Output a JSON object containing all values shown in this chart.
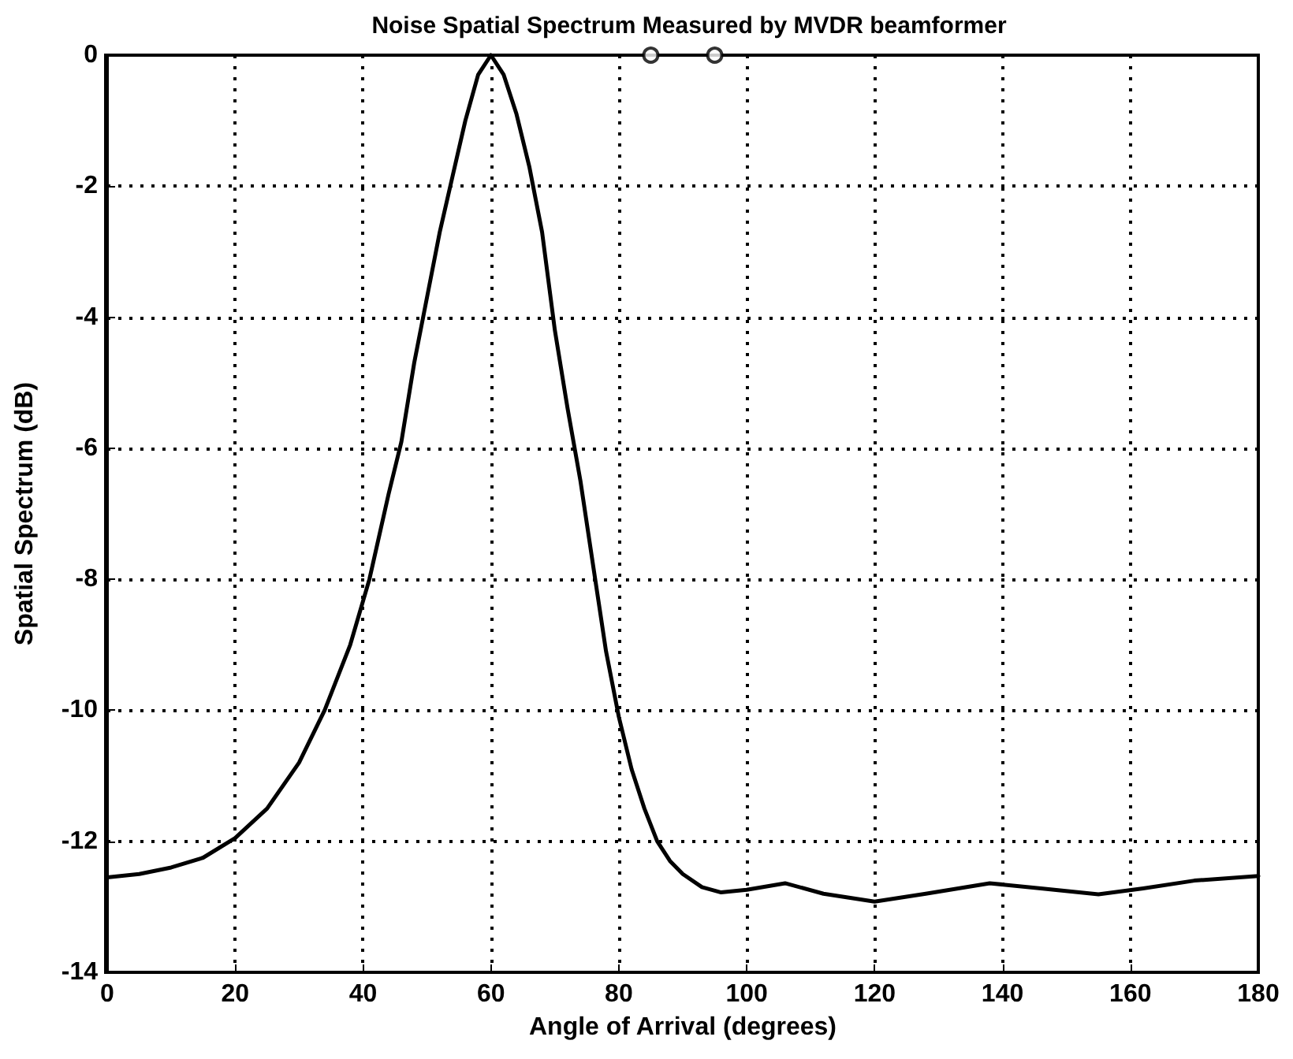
{
  "chart_data": {
    "type": "line",
    "title": "Noise Spatial Spectrum Measured by MVDR beamformer",
    "xlabel": "Angle of Arrival (degrees)",
    "ylabel": "Spatial Spectrum (dB)",
    "series": [
      {
        "color": "#000000",
        "x": [
          0,
          5,
          10,
          15,
          20,
          25,
          30,
          34,
          38,
          41,
          44,
          46,
          48,
          50,
          52,
          54,
          56,
          58,
          60,
          62,
          64,
          66,
          68,
          70,
          72,
          74,
          76,
          78,
          80,
          82,
          84,
          86,
          88,
          90,
          93,
          96,
          100,
          106,
          112,
          120,
          128,
          138,
          146,
          155,
          162,
          170,
          180
        ],
        "values": [
          -12.55,
          -12.5,
          -12.4,
          -12.25,
          -11.95,
          -11.5,
          -10.8,
          -10,
          -9,
          -8,
          -6.7,
          -5.9,
          -4.7,
          -3.7,
          -2.7,
          -1.85,
          -1,
          -0.3,
          0,
          -0.3,
          -0.9,
          -1.7,
          -2.7,
          -4.2,
          -5.4,
          -6.5,
          -7.8,
          -9.1,
          -10.1,
          -10.9,
          -11.5,
          -12,
          -12.3,
          -12.5,
          -12.7,
          -12.78,
          -12.74,
          -12.64,
          -12.8,
          -12.92,
          -12.8,
          -12.64,
          -12.72,
          -12.81,
          -12.72,
          -12.6,
          -12.53
        ]
      },
      {
        "type": "scatter",
        "color": "#000000",
        "marker": "circle",
        "x": [
          85,
          95
        ],
        "values": [
          0,
          0
        ]
      }
    ],
    "xlim": [
      0,
      180
    ],
    "xticks": [
      0,
      20,
      40,
      60,
      80,
      100,
      120,
      140,
      160,
      180
    ],
    "ylim": [
      -14,
      0
    ],
    "yticks": [
      -14,
      -12,
      -10,
      -8,
      -6,
      -4,
      -2,
      0
    ],
    "grid": true,
    "marker": "none",
    "line_style": "solid"
  }
}
